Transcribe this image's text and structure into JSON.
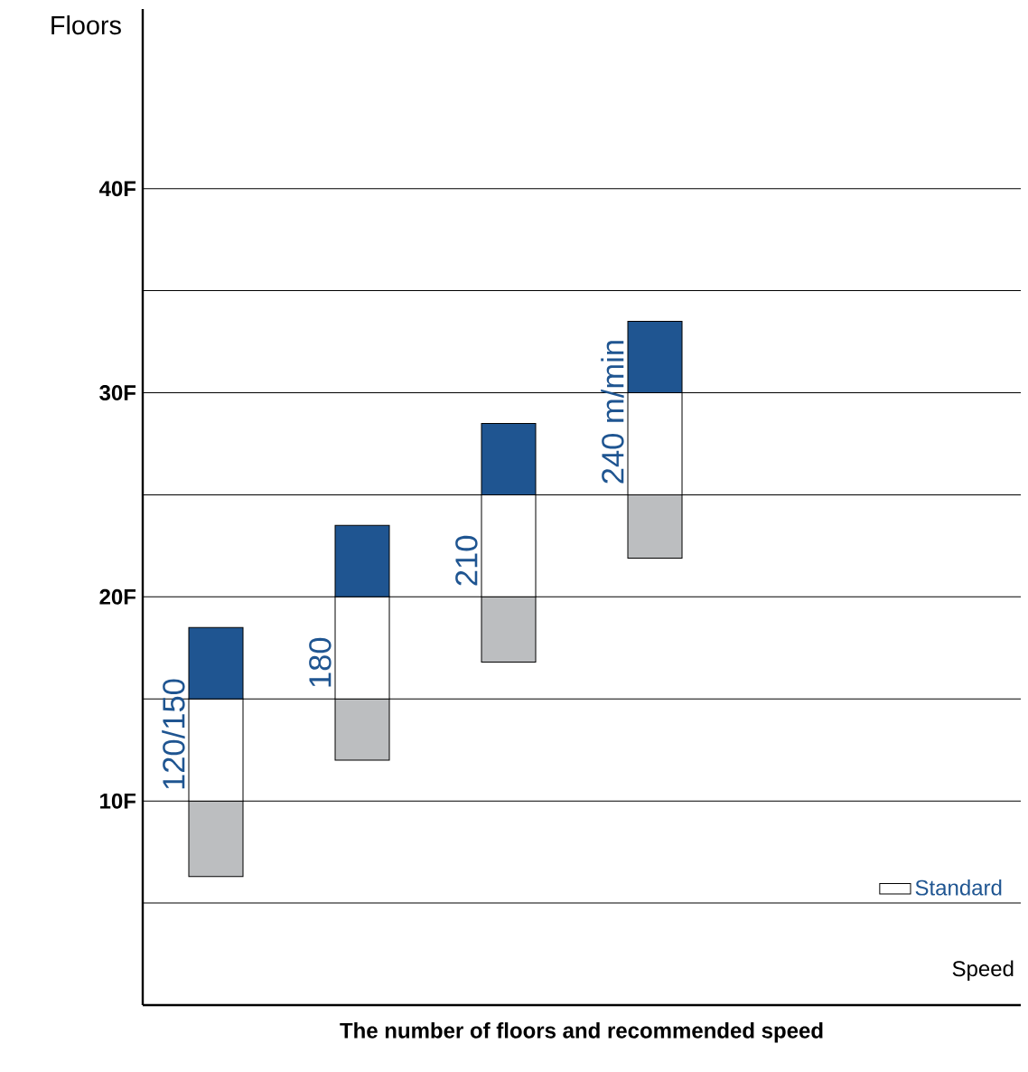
{
  "chart_data": {
    "type": "bar",
    "title": "The number of floors and recommended speed",
    "xlabel": "Speed",
    "ylabel": "Floors",
    "categories": [
      null,
      null,
      null,
      null,
      null,
      null
    ],
    "annotations": [
      "120/150",
      "180",
      "210",
      "240 m/min"
    ],
    "series": [
      {
        "color": "#bcbec0",
        "base": [
          6.3,
          12,
          16.8,
          21.9,
          null,
          null
        ],
        "values": [
          3.7,
          3,
          3.2,
          3.1,
          null,
          null
        ]
      },
      {
        "name": "Standard",
        "color": "#ffffff",
        "base": [
          10,
          15,
          20,
          25,
          null,
          null
        ],
        "values": [
          5,
          5,
          5,
          5,
          null,
          null
        ]
      },
      {
        "color": "#1f5591",
        "base": [
          15,
          20,
          25,
          30,
          null,
          null
        ],
        "values": [
          3.5,
          3.5,
          3.5,
          3.5,
          null,
          null
        ]
      }
    ],
    "ylim": [
      0,
      48.8
    ],
    "yticks": [
      {
        "value": 5,
        "label": null
      },
      {
        "value": 10,
        "label": "10F"
      },
      {
        "value": 15,
        "label": null
      },
      {
        "value": 20,
        "label": "20F"
      },
      {
        "value": 25,
        "label": null
      },
      {
        "value": 30,
        "label": "30F"
      },
      {
        "value": 35,
        "label": null
      },
      {
        "value": 40,
        "label": "40F"
      }
    ],
    "grid": "y",
    "legend": "bottom right"
  }
}
